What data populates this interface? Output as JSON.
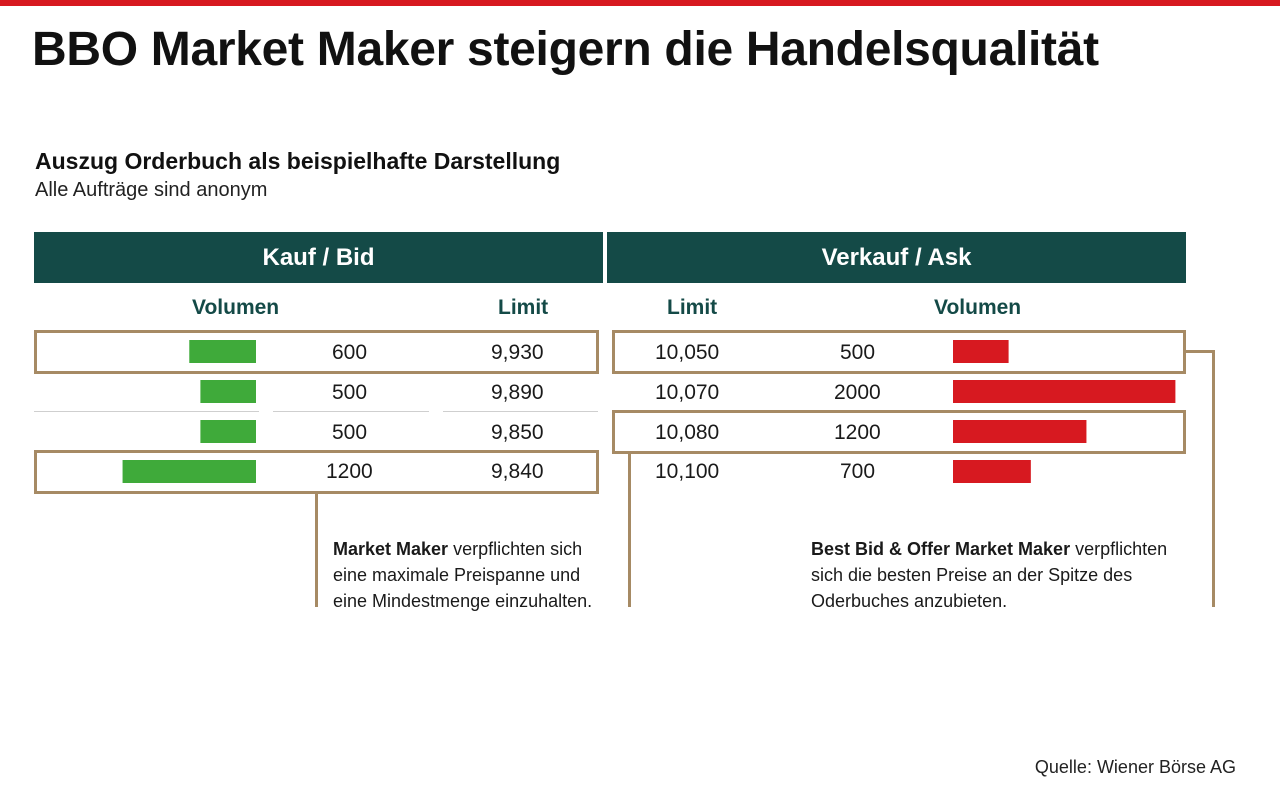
{
  "title": "BBO Market Maker steigern die Handelsqualität",
  "subtitle": "Auszug Orderbuch als beispielhafte Darstellung",
  "note": "Alle Aufträge sind anonym",
  "colors": {
    "header_bg": "#144a47",
    "bid_bar": "#3faa3a",
    "ask_bar": "#d71920",
    "frame": "#a68a64",
    "accent": "#d71920"
  },
  "chart_data": {
    "type": "bar",
    "bid": {
      "header": "Kauf / Bid",
      "volume_label": "Volumen",
      "limit_label": "Limit",
      "rows": [
        {
          "volume": 600,
          "limit": "9,930"
        },
        {
          "volume": 500,
          "limit": "9,890"
        },
        {
          "volume": 500,
          "limit": "9,850"
        },
        {
          "volume": 1200,
          "limit": "9,840"
        }
      ]
    },
    "ask": {
      "header": "Verkauf / Ask",
      "limit_label": "Limit",
      "volume_label": "Volumen",
      "rows": [
        {
          "limit": "10,050",
          "volume": 500
        },
        {
          "limit": "10,070",
          "volume": 2000
        },
        {
          "limit": "10,080",
          "volume": 1200
        },
        {
          "limit": "10,100",
          "volume": 700
        }
      ]
    }
  },
  "callouts": {
    "market_maker": {
      "bold": "Market Maker",
      "text": " verpflichten sich eine maximale Preispanne und eine Mindestmenge einzuhalten."
    },
    "bbo": {
      "bold": "Best Bid & Offer Market Maker",
      "text": " verpflichten sich die besten Preise an der Spitze des Oderbuches anzubieten."
    }
  },
  "source": "Quelle: Wiener Börse AG"
}
